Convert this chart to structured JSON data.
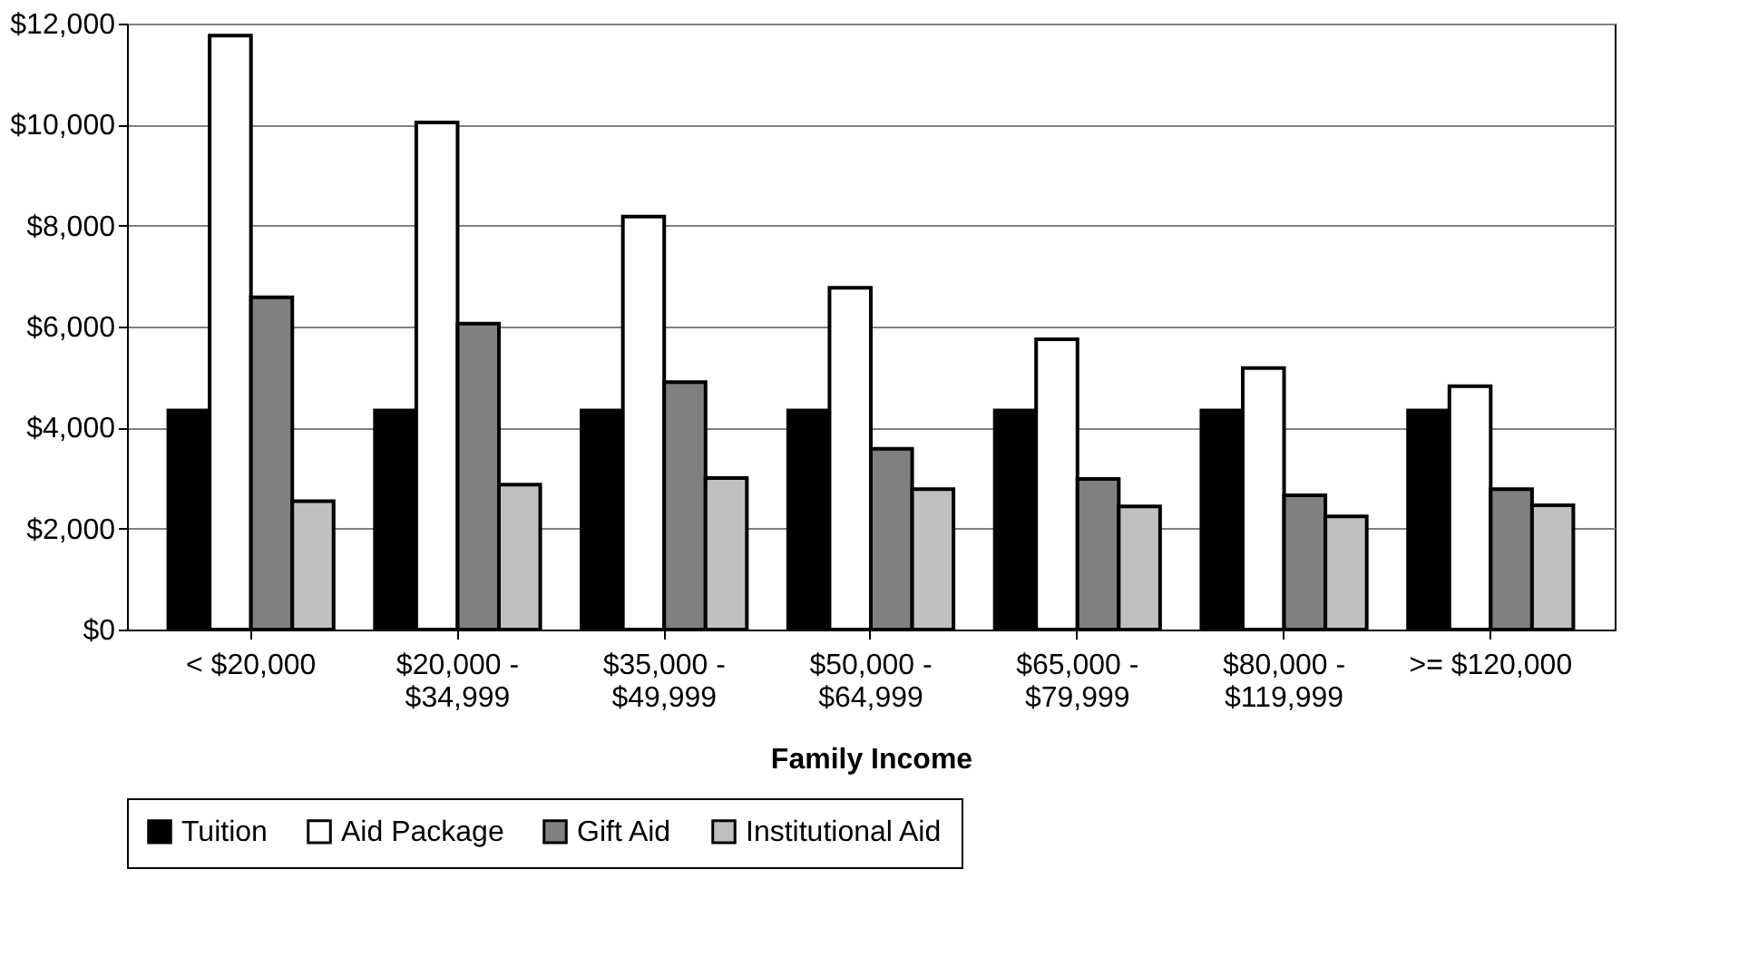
{
  "chart_data": {
    "type": "bar",
    "xlabel": "Family Income",
    "categories": [
      "< $20,000",
      "$20,000 - $34,999",
      "$35,000 - $49,999",
      "$50,000 - $64,999",
      "$65,000 - $79,999",
      "$80,000 - $119,999",
      ">= $120,000"
    ],
    "series": [
      {
        "name": "Tuition",
        "color": "#000000",
        "values": [
          4340,
          4340,
          4340,
          4340,
          4340,
          4340,
          4340
        ]
      },
      {
        "name": "Aid Package",
        "color": "#ffffff",
        "values": [
          11760,
          10040,
          8180,
          6770,
          5750,
          5180,
          4820
        ]
      },
      {
        "name": "Gift Aid",
        "color": "#808080",
        "values": [
          6580,
          6060,
          4900,
          3580,
          2980,
          2660,
          2780
        ]
      },
      {
        "name": "Institutional Aid",
        "color": "#c0c0c0",
        "values": [
          2540,
          2870,
          3000,
          2780,
          2440,
          2240,
          2460
        ]
      }
    ],
    "ylim": [
      0,
      12000
    ],
    "yticks": [
      {
        "value": 0,
        "label": "$0"
      },
      {
        "value": 2000,
        "label": "$2,000"
      },
      {
        "value": 4000,
        "label": "$4,000"
      },
      {
        "value": 6000,
        "label": "$6,000"
      },
      {
        "value": 8000,
        "label": "$8,000"
      },
      {
        "value": 10000,
        "label": "$10,000"
      },
      {
        "value": 12000,
        "label": "$12,000"
      }
    ],
    "grid": "y",
    "legend": "bottom"
  }
}
